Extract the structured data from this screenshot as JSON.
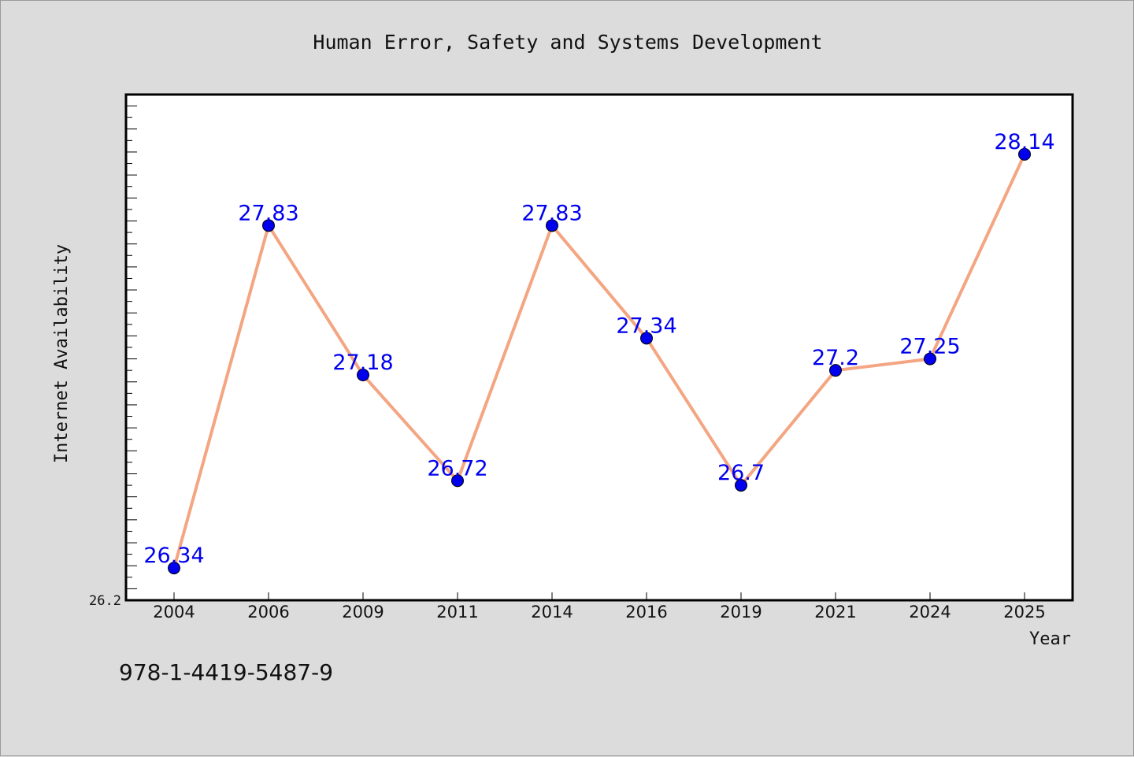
{
  "chart_data": {
    "type": "line",
    "title": "Human Error, Safety and Systems Development",
    "xlabel": "Year",
    "ylabel": "Internet Availability",
    "categories": [
      "2004",
      "2006",
      "2009",
      "2011",
      "2014",
      "2016",
      "2019",
      "2021",
      "2024",
      "2025"
    ],
    "series": [
      {
        "values": [
          26.34,
          27.83,
          27.18,
          26.72,
          27.83,
          27.34,
          26.7,
          27.2,
          27.25,
          28.14
        ],
        "labels": [
          "26.34",
          "27.83",
          "27.18",
          "26.72",
          "27.83",
          "27.34",
          "26.7",
          "27.2",
          "27.25",
          "28.14"
        ],
        "line_color": "#f4a582",
        "marker_color": "#0000ee",
        "label_color": "#0000ee"
      }
    ],
    "ylim": [
      26.2,
      28.4
    ],
    "y_tick_labels": [
      "26.2"
    ],
    "grid": false,
    "legend": "none"
  },
  "footer": {
    "isbn": "978-1-4419-5487-9"
  }
}
